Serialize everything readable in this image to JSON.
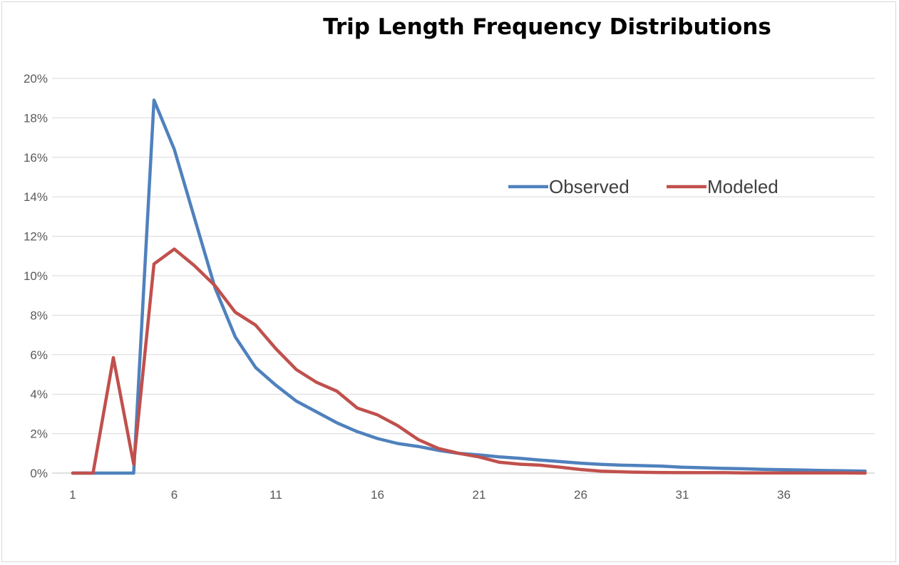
{
  "chart_data": {
    "type": "line",
    "title": "Trip Length Frequency Distributions",
    "xlabel": "",
    "ylabel": "",
    "x": [
      1,
      2,
      3,
      4,
      5,
      6,
      7,
      8,
      9,
      10,
      11,
      12,
      13,
      14,
      15,
      16,
      17,
      18,
      19,
      20,
      21,
      22,
      23,
      24,
      25,
      26,
      27,
      28,
      29,
      30,
      31,
      32,
      33,
      34,
      35,
      36,
      37,
      38,
      39,
      40
    ],
    "x_tick_labels": [
      "1",
      "6",
      "11",
      "16",
      "21",
      "26",
      "31",
      "36"
    ],
    "y_tick_labels": [
      "0%",
      "2%",
      "4%",
      "6%",
      "8%",
      "10%",
      "12%",
      "14%",
      "16%",
      "18%",
      "20%"
    ],
    "ylim": [
      0,
      20
    ],
    "y_unit": "%",
    "grid": true,
    "legend_position": "upper-right-inside",
    "series": [
      {
        "name": "Observed",
        "color": "#4F81BD",
        "values": [
          0,
          0,
          0,
          0,
          18.9,
          16.4,
          12.9,
          9.4,
          6.9,
          5.35,
          4.45,
          3.65,
          3.1,
          2.55,
          2.1,
          1.75,
          1.5,
          1.35,
          1.15,
          1.0,
          0.92,
          0.82,
          0.75,
          0.66,
          0.58,
          0.5,
          0.44,
          0.4,
          0.38,
          0.35,
          0.3,
          0.27,
          0.24,
          0.22,
          0.19,
          0.17,
          0.15,
          0.13,
          0.12,
          0.1
        ]
      },
      {
        "name": "Modeled",
        "color": "#C0504D",
        "values": [
          0,
          0,
          5.85,
          0.45,
          10.6,
          11.35,
          10.5,
          9.5,
          8.15,
          7.5,
          6.3,
          5.25,
          4.6,
          4.15,
          3.3,
          2.95,
          2.4,
          1.7,
          1.25,
          1.0,
          0.82,
          0.55,
          0.45,
          0.4,
          0.3,
          0.18,
          0.1,
          0.06,
          0.04,
          0.03,
          0.02,
          0.02,
          0.02,
          0.01,
          0.01,
          0.01,
          0.01,
          0.01,
          0.01,
          0.0
        ]
      }
    ]
  }
}
